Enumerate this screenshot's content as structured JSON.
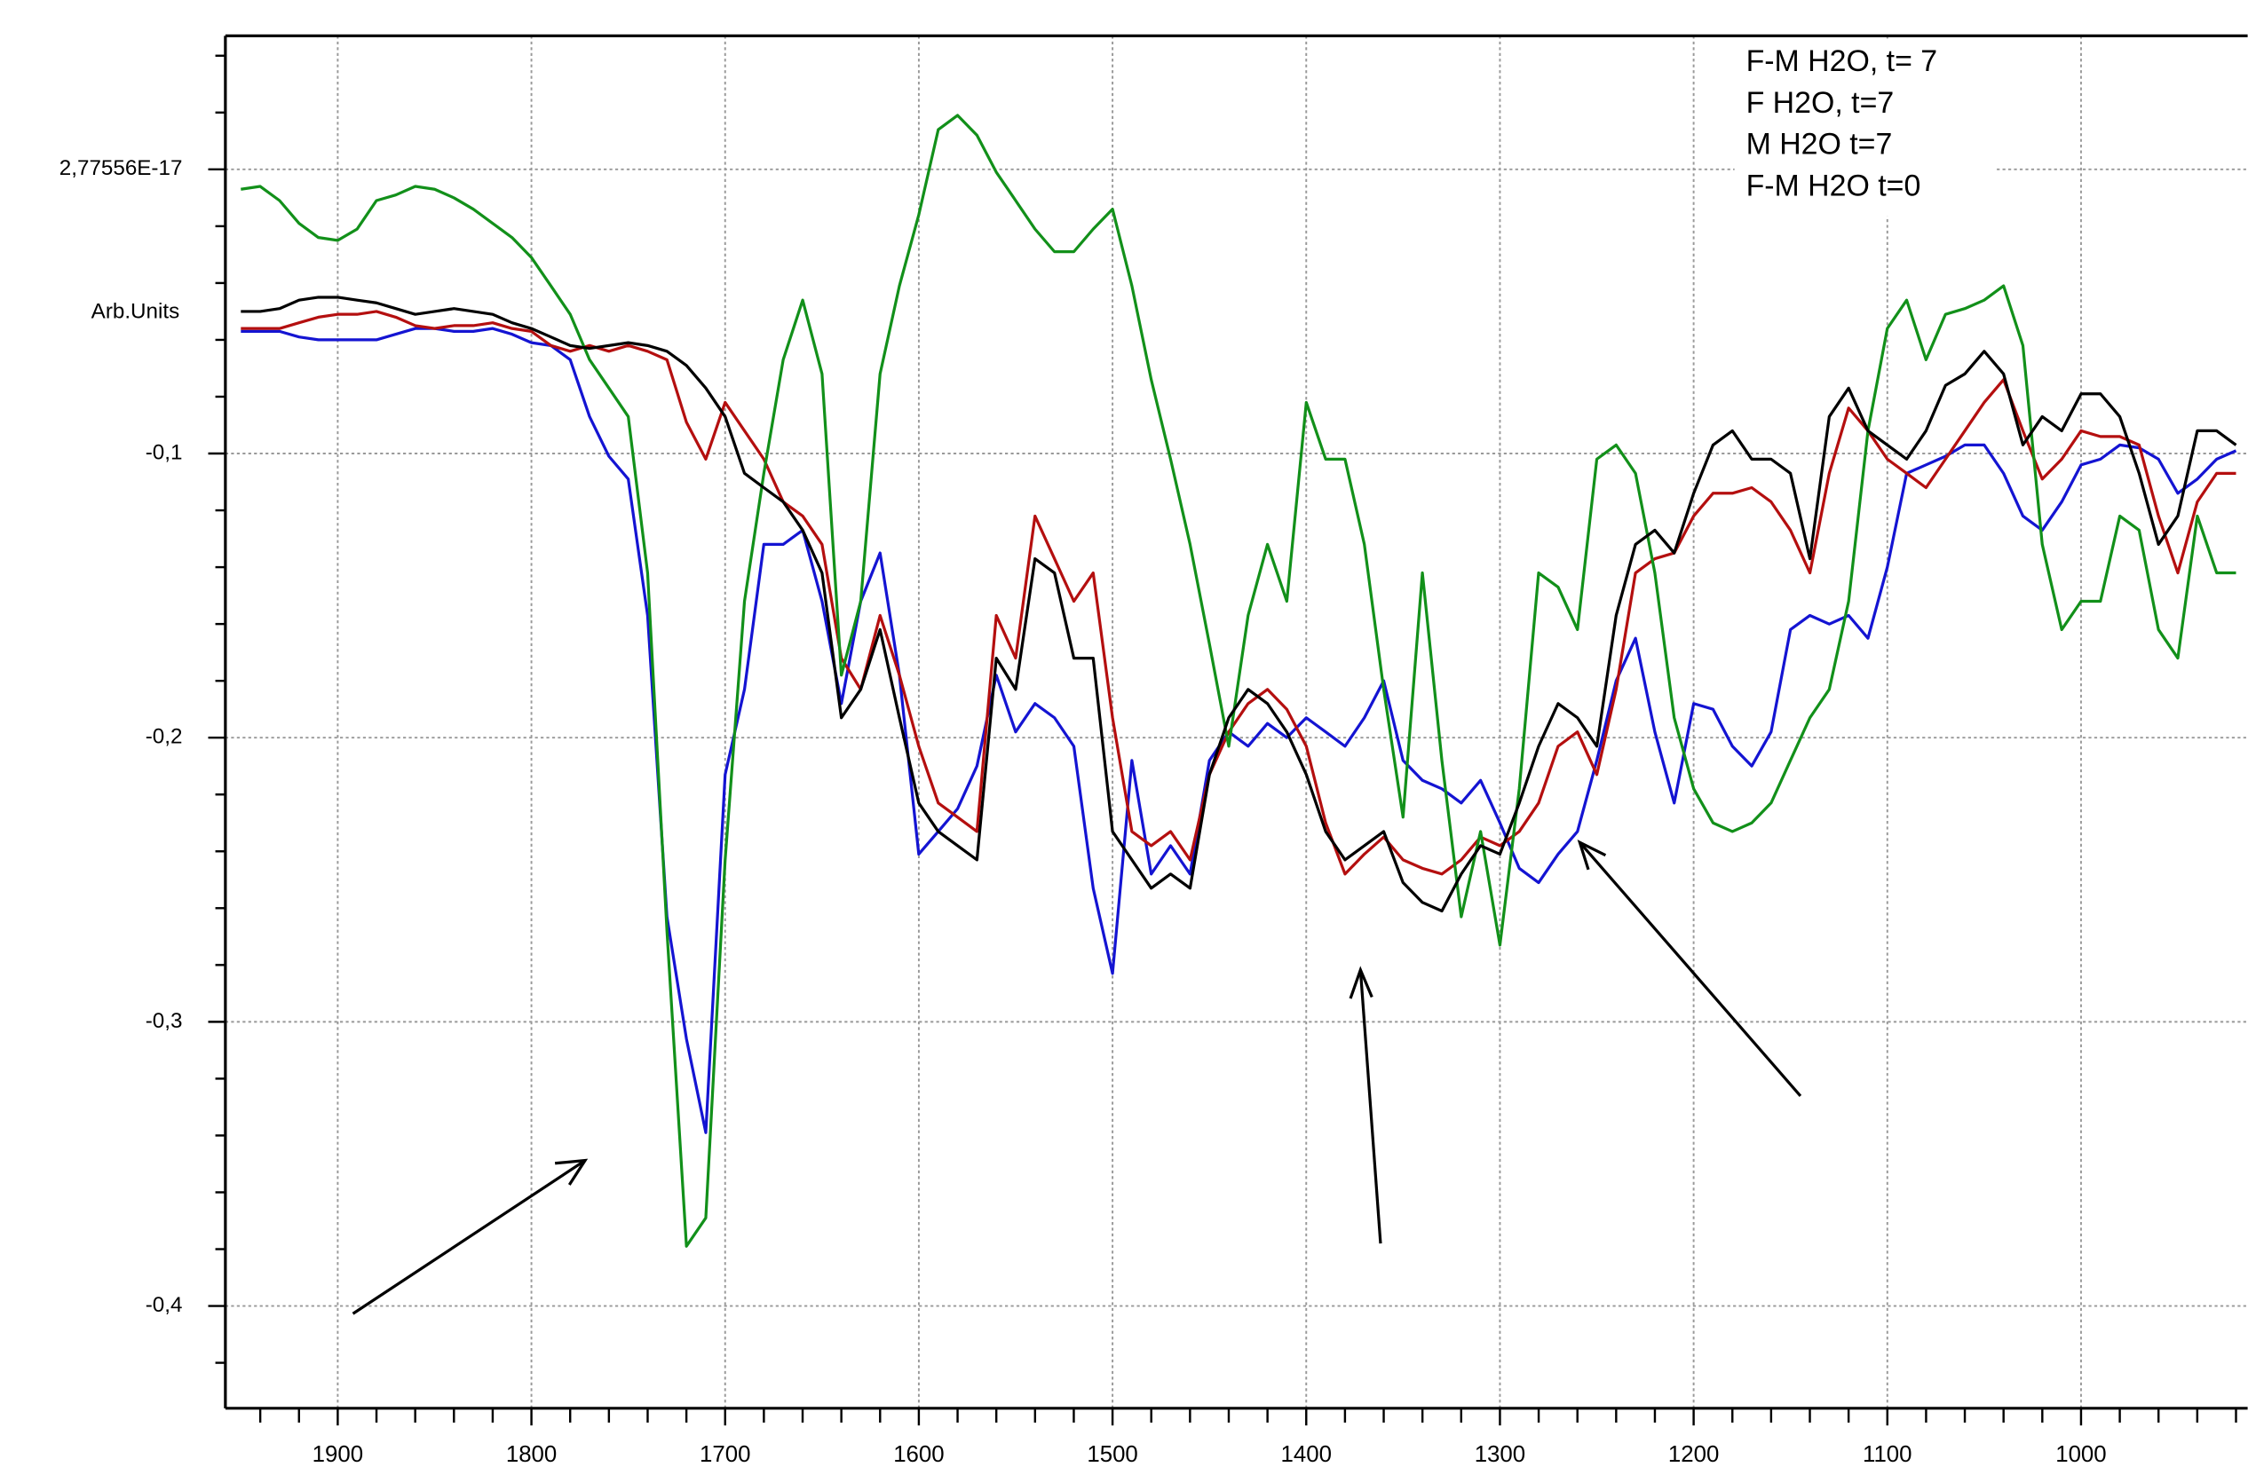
{
  "chart_data": {
    "type": "line",
    "y_label": "Arb.Units",
    "x": [
      1950,
      1940,
      1930,
      1920,
      1910,
      1900,
      1890,
      1880,
      1870,
      1860,
      1850,
      1840,
      1830,
      1820,
      1810,
      1800,
      1790,
      1780,
      1770,
      1760,
      1750,
      1740,
      1730,
      1720,
      1710,
      1700,
      1690,
      1680,
      1670,
      1660,
      1650,
      1640,
      1630,
      1620,
      1610,
      1600,
      1590,
      1580,
      1570,
      1560,
      1550,
      1540,
      1530,
      1520,
      1510,
      1500,
      1490,
      1480,
      1470,
      1460,
      1450,
      1440,
      1430,
      1420,
      1410,
      1400,
      1390,
      1380,
      1370,
      1360,
      1350,
      1340,
      1330,
      1320,
      1310,
      1300,
      1290,
      1280,
      1270,
      1260,
      1250,
      1240,
      1230,
      1220,
      1210,
      1200,
      1190,
      1180,
      1170,
      1160,
      1150,
      1140,
      1130,
      1120,
      1110,
      1100,
      1090,
      1080,
      1070,
      1060,
      1050,
      1040,
      1030,
      1020,
      1010,
      1000,
      990,
      980,
      970,
      960,
      950,
      940,
      930,
      920
    ],
    "xlim": [
      1958,
      914
    ],
    "xticks": [
      1900,
      1800,
      1700,
      1600,
      1500,
      1400,
      1300,
      1200,
      1100,
      1000
    ],
    "minor_xticks": [
      1940,
      1920,
      1880,
      1860,
      1840,
      1820,
      1780,
      1760,
      1740,
      1720,
      1680,
      1660,
      1640,
      1620,
      1580,
      1560,
      1540,
      1520,
      1480,
      1460,
      1440,
      1420,
      1380,
      1360,
      1340,
      1320,
      1280,
      1260,
      1240,
      1220,
      1180,
      1160,
      1140,
      1120,
      1080,
      1060,
      1040,
      1020,
      980,
      960,
      940,
      920
    ],
    "ylim": [
      -0.436,
      0.047
    ],
    "yticks": [
      {
        "value": 2.77556e-17,
        "label": "2,77556E-17"
      },
      {
        "value": -0.1,
        "label": "-0,1"
      },
      {
        "value": -0.2,
        "label": "-0,2"
      },
      {
        "value": -0.3,
        "label": "-0,3"
      },
      {
        "value": -0.4,
        "label": "-0,4"
      }
    ],
    "minor_yticks": [
      0.04,
      0.02,
      -0.02,
      -0.04,
      -0.06,
      -0.08,
      -0.12,
      -0.14,
      -0.16,
      -0.18,
      -0.22,
      -0.24,
      -0.26,
      -0.28,
      -0.32,
      -0.34,
      -0.36,
      -0.38,
      -0.42
    ],
    "grid": true,
    "legend": "upper right",
    "series": [
      {
        "name": "F-M H2O, t= 7",
        "color": "#1414d2",
        "values": [
          -0.057,
          -0.057,
          -0.057,
          -0.059,
          -0.06,
          -0.06,
          -0.06,
          -0.06,
          -0.058,
          -0.056,
          -0.056,
          -0.057,
          -0.057,
          -0.056,
          -0.058,
          -0.061,
          -0.062,
          -0.067,
          -0.087,
          -0.101,
          -0.109,
          -0.157,
          -0.263,
          -0.306,
          -0.339,
          -0.213,
          -0.183,
          -0.132,
          -0.132,
          -0.127,
          -0.152,
          -0.188,
          -0.152,
          -0.135,
          -0.178,
          -0.241,
          -0.233,
          -0.225,
          -0.21,
          -0.178,
          -0.198,
          -0.188,
          -0.193,
          -0.203,
          -0.253,
          -0.283,
          -0.208,
          -0.248,
          -0.238,
          -0.248,
          -0.208,
          -0.198,
          -0.203,
          -0.195,
          -0.2,
          -0.193,
          -0.198,
          -0.203,
          -0.193,
          -0.18,
          -0.208,
          -0.215,
          -0.218,
          -0.223,
          -0.215,
          -0.23,
          -0.246,
          -0.251,
          -0.241,
          -0.233,
          -0.208,
          -0.18,
          -0.165,
          -0.198,
          -0.223,
          -0.188,
          -0.19,
          -0.203,
          -0.21,
          -0.198,
          -0.162,
          -0.157,
          -0.16,
          -0.157,
          -0.165,
          -0.14,
          -0.107,
          -0.104,
          -0.101,
          -0.097,
          -0.097,
          -0.107,
          -0.122,
          -0.127,
          -0.117,
          -0.104,
          -0.102,
          -0.097,
          -0.098,
          -0.102,
          -0.114,
          -0.109,
          -0.102,
          -0.099
        ]
      },
      {
        "name": "F H2O, t=7",
        "color": "#b40f0f",
        "values": [
          -0.056,
          -0.056,
          -0.056,
          -0.054,
          -0.052,
          -0.051,
          -0.051,
          -0.05,
          -0.052,
          -0.055,
          -0.056,
          -0.055,
          -0.055,
          -0.054,
          -0.056,
          -0.057,
          -0.062,
          -0.064,
          -0.062,
          -0.064,
          -0.062,
          -0.064,
          -0.067,
          -0.089,
          -0.102,
          -0.082,
          -0.092,
          -0.102,
          -0.117,
          -0.122,
          -0.132,
          -0.172,
          -0.183,
          -0.157,
          -0.178,
          -0.203,
          -0.223,
          -0.228,
          -0.233,
          -0.157,
          -0.172,
          -0.122,
          -0.137,
          -0.152,
          -0.142,
          -0.193,
          -0.233,
          -0.238,
          -0.233,
          -0.243,
          -0.213,
          -0.198,
          -0.188,
          -0.183,
          -0.19,
          -0.203,
          -0.23,
          -0.248,
          -0.241,
          -0.235,
          -0.243,
          -0.246,
          -0.248,
          -0.243,
          -0.235,
          -0.238,
          -0.233,
          -0.223,
          -0.203,
          -0.198,
          -0.213,
          -0.183,
          -0.142,
          -0.137,
          -0.135,
          -0.122,
          -0.114,
          -0.114,
          -0.112,
          -0.117,
          -0.127,
          -0.142,
          -0.107,
          -0.084,
          -0.092,
          -0.102,
          -0.107,
          -0.112,
          -0.102,
          -0.092,
          -0.082,
          -0.074,
          -0.092,
          -0.109,
          -0.102,
          -0.092,
          -0.094,
          -0.094,
          -0.097,
          -0.122,
          -0.142,
          -0.117,
          -0.107,
          -0.107
        ]
      },
      {
        "name": "M H2O t=7",
        "color": "#12901a",
        "values": [
          -0.007,
          -0.006,
          -0.011,
          -0.019,
          -0.024,
          -0.025,
          -0.021,
          -0.011,
          -0.009,
          -0.006,
          -0.007,
          -0.01,
          -0.014,
          -0.019,
          -0.024,
          -0.031,
          -0.041,
          -0.051,
          -0.067,
          -0.077,
          -0.087,
          -0.142,
          -0.268,
          -0.379,
          -0.369,
          -0.243,
          -0.152,
          -0.107,
          -0.067,
          -0.046,
          -0.072,
          -0.178,
          -0.152,
          -0.072,
          -0.041,
          -0.016,
          0.014,
          0.019,
          0.012,
          -0.001,
          -0.011,
          -0.021,
          -0.029,
          -0.029,
          -0.021,
          -0.014,
          -0.041,
          -0.074,
          -0.102,
          -0.132,
          -0.167,
          -0.203,
          -0.157,
          -0.132,
          -0.152,
          -0.082,
          -0.102,
          -0.102,
          -0.132,
          -0.183,
          -0.228,
          -0.142,
          -0.208,
          -0.263,
          -0.233,
          -0.273,
          -0.218,
          -0.142,
          -0.147,
          -0.162,
          -0.102,
          -0.097,
          -0.107,
          -0.142,
          -0.193,
          -0.218,
          -0.23,
          -0.233,
          -0.23,
          -0.223,
          -0.208,
          -0.193,
          -0.183,
          -0.152,
          -0.092,
          -0.056,
          -0.046,
          -0.067,
          -0.051,
          -0.049,
          -0.046,
          -0.041,
          -0.062,
          -0.132,
          -0.162,
          -0.152,
          -0.152,
          -0.122,
          -0.127,
          -0.162,
          -0.172,
          -0.122,
          -0.142,
          -0.142
        ]
      },
      {
        "name": "F-M H2O t=0",
        "color": "#000000",
        "values": [
          -0.05,
          -0.05,
          -0.049,
          -0.046,
          -0.045,
          -0.045,
          -0.046,
          -0.047,
          -0.049,
          -0.051,
          -0.05,
          -0.049,
          -0.05,
          -0.051,
          -0.054,
          -0.056,
          -0.059,
          -0.062,
          -0.063,
          -0.062,
          -0.061,
          -0.062,
          -0.064,
          -0.069,
          -0.077,
          -0.087,
          -0.107,
          -0.112,
          -0.117,
          -0.127,
          -0.142,
          -0.193,
          -0.183,
          -0.162,
          -0.193,
          -0.223,
          -0.233,
          -0.238,
          -0.243,
          -0.172,
          -0.183,
          -0.137,
          -0.142,
          -0.172,
          -0.172,
          -0.233,
          -0.243,
          -0.253,
          -0.248,
          -0.253,
          -0.213,
          -0.193,
          -0.183,
          -0.188,
          -0.198,
          -0.213,
          -0.233,
          -0.243,
          -0.238,
          -0.233,
          -0.251,
          -0.258,
          -0.261,
          -0.248,
          -0.238,
          -0.241,
          -0.223,
          -0.203,
          -0.188,
          -0.193,
          -0.203,
          -0.157,
          -0.132,
          -0.127,
          -0.135,
          -0.114,
          -0.097,
          -0.092,
          -0.102,
          -0.102,
          -0.107,
          -0.137,
          -0.087,
          -0.077,
          -0.092,
          -0.097,
          -0.102,
          -0.092,
          -0.076,
          -0.072,
          -0.064,
          -0.072,
          -0.097,
          -0.087,
          -0.092,
          -0.079,
          -0.079,
          -0.087,
          -0.107,
          -0.132,
          -0.122,
          -0.092,
          -0.092,
          -0.097
        ]
      }
    ]
  }
}
